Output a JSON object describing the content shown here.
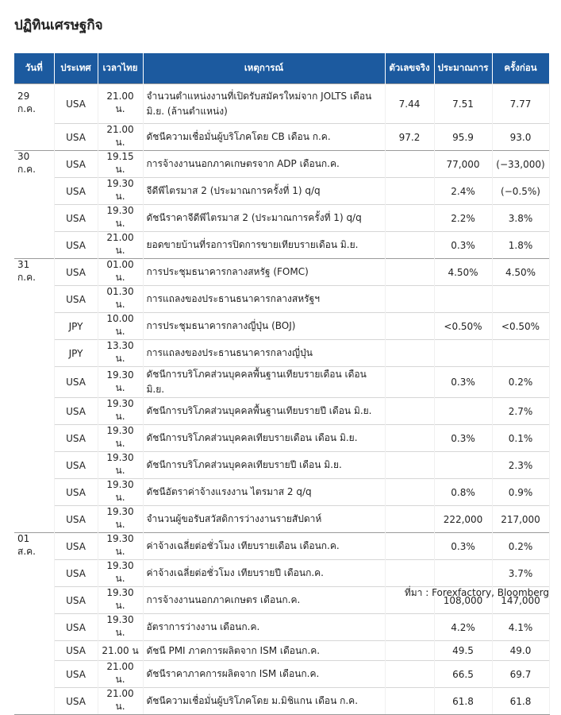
{
  "header": {
    "title": "ปฏิทินเศรษฐกิจ"
  },
  "table": {
    "columns": [
      "วันที่",
      "ประเทศ",
      "เวลาไทย",
      "เหตุการณ์",
      "ตัวเลขจริง",
      "ประมาณการ",
      "ครั้งก่อน"
    ],
    "rows": [
      [
        "29 ก.ค.",
        "USA",
        "21.00 น.",
        "จำนวนตำแหน่งงานที่เปิดรับสมัครใหม่จาก JOLTS เดือน มิ.ย. (ล้านตำแหน่ง)",
        "7.44",
        "7.51",
        "7.77"
      ],
      [
        null,
        "USA",
        "21.00 น.",
        "ดัชนีความเชื่อมั่นผู้บริโภคโดย CB เดือน ก.ค.",
        "97.2",
        "95.9",
        "93.0"
      ],
      [
        "30 ก.ค.",
        "USA",
        "19.15 น.",
        "การจ้างงานนอกภาคเกษตรจาก ADP เดือนก.ค.",
        null,
        "77,000",
        "(−33,000)"
      ],
      [
        null,
        "USA",
        "19.30 น.",
        "จีดีพีไตรมาส 2 (ประมาณการครั้งที่ 1) q/q",
        null,
        "2.4%",
        "(−0.5%)"
      ],
      [
        null,
        "USA",
        "19.30 น.",
        "ดัชนีราคาจีดีพีไตรมาส 2 (ประมาณการครั้งที่ 1) q/q",
        null,
        "2.2%",
        "3.8%"
      ],
      [
        null,
        "USA",
        "21.00 น.",
        "ยอดขายบ้านที่รอการปิดการขายเทียบรายเดือน มิ.ย.",
        null,
        "0.3%",
        "1.8%"
      ],
      [
        "31 ก.ค.",
        "USA",
        "01.00 น.",
        "การประชุมธนาคารกลางสหรัฐ (FOMC)",
        null,
        "4.50%",
        "4.50%"
      ],
      [
        null,
        "USA",
        "01.30 น.",
        "การแถลงของประธานธนาคารกลางสหรัฐฯ",
        null,
        null,
        null
      ],
      [
        null,
        "JPY",
        "10.00 น.",
        "การประชุมธนาคารกลางญี่ปุ่น (BOJ)",
        null,
        "<0.50%",
        "<0.50%"
      ],
      [
        null,
        "JPY",
        "13.30 น.",
        "การแถลงของประธานธนาคารกลางญี่ปุ่น",
        null,
        null,
        null
      ],
      [
        null,
        "USA",
        "19.30 น.",
        "ดัชนีการบริโภคส่วนบุคคลพื้นฐานเทียบรายเดือน เดือน มิ.ย.",
        null,
        "0.3%",
        "0.2%"
      ],
      [
        null,
        "USA",
        "19.30 น.",
        "ดัชนีการบริโภคส่วนบุคคลพื้นฐานเทียบรายปี เดือน มิ.ย.",
        null,
        null,
        "2.7%"
      ],
      [
        null,
        "USA",
        "19.30 น.",
        "ดัชนีการบริโภคส่วนบุคคลเทียบรายเดือน เดือน มิ.ย.",
        null,
        "0.3%",
        "0.1%"
      ],
      [
        null,
        "USA",
        "19.30 น.",
        "ดัชนีการบริโภคส่วนบุคคลเทียบรายปี เดือน มิ.ย.",
        null,
        null,
        "2.3%"
      ],
      [
        null,
        "USA",
        "19.30 น.",
        "ดัชนีอัตราค่าจ้างแรงงาน ไตรมาส 2 q/q",
        null,
        "0.8%",
        "0.9%"
      ],
      [
        null,
        "USA",
        "19.30 น.",
        "จำนวนผู้ขอรับสวัสดิการว่างงานรายสัปดาห์",
        null,
        "222,000",
        "217,000"
      ],
      [
        "01 ส.ค.",
        "USA",
        "19.30 น.",
        "ค่าจ้างเฉลี่ยต่อชั่วโมง เทียบรายเดือน เดือนก.ค.",
        null,
        "0.3%",
        "0.2%"
      ],
      [
        null,
        "USA",
        "19.30 น.",
        "ค่าจ้างเฉลี่ยต่อชั่วโมง เทียบรายปี เดือนก.ค.",
        null,
        null,
        "3.7%"
      ],
      [
        null,
        "USA",
        "19.30 น.",
        "การจ้างงานนอกภาคเกษตร เดือนก.ค.",
        null,
        "108,000",
        "147,000"
      ],
      [
        null,
        "USA",
        "19.30 น.",
        "อัตราการว่างงาน เดือนก.ค.",
        null,
        "4.2%",
        "4.1%"
      ],
      [
        null,
        "USA",
        "21.00 น",
        "ดัชนี PMI ภาคการผลิตจาก ISM เดือนก.ค.",
        null,
        "49.5",
        "49.0"
      ],
      [
        null,
        "USA",
        "21.00 น.",
        "ดัชนีราคาภาคการผลิตจาก ISM เดือนก.ค.",
        null,
        "66.5",
        "69.7"
      ],
      [
        null,
        "USA",
        "21.00 น.",
        "ดัชนีความเชื่อมั่นผู้บริโภคโดย ม.มิชิแกน เดือน ก.ค.",
        null,
        "61.8",
        "61.8"
      ]
    ]
  },
  "footer": {
    "source": "ที่มา : Forexfactory, Bloomberg"
  }
}
